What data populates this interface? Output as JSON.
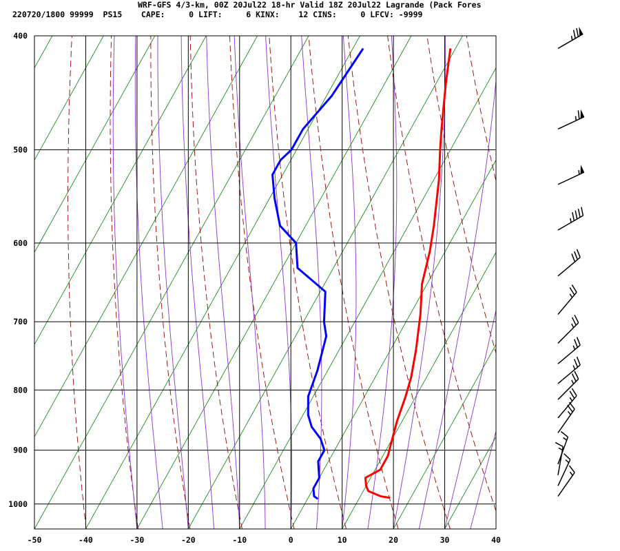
{
  "header": {
    "title": "WRF-GFS 4/3-km, 00Z 20Jul22 18-hr Valid 18Z 20Jul22 Lagrande (Pack Fores",
    "info": "220720/1800 99999  PS15    CAPE:     0 LIFT:     6 KINX:    12 CINS:     0 LFCV: -9999"
  },
  "colors": {
    "temperature": "#ff0000",
    "dewpoint": "#0000ff",
    "dry_adiabat": "#990000",
    "isotherm_skew": "#008000",
    "moist_adiabat": "#8833cc",
    "grid": "#000000",
    "wind": "#000000"
  },
  "chart_data": {
    "type": "line",
    "diagram": "skew-T log-P sounding",
    "xlabel": "",
    "ylabel": "",
    "x_ticks": [
      "-50",
      "-40",
      "-30",
      "-20",
      "-10",
      "0",
      "10",
      "20",
      "30",
      "40"
    ],
    "y_ticks": [
      "400",
      "500",
      "600",
      "700",
      "800",
      "900",
      "1000"
    ],
    "xlim": [
      -50,
      40
    ],
    "ylim_hpa": [
      1050,
      400
    ],
    "y_scale": "log pressure",
    "grid": true,
    "series": [
      {
        "key": "temperature",
        "points_t_p": [
          [
            -21,
            410
          ],
          [
            -18,
            440
          ],
          [
            -14,
            480
          ],
          [
            -12,
            500
          ],
          [
            -9,
            530
          ],
          [
            -5,
            580
          ],
          [
            -3,
            610
          ],
          [
            -1,
            650
          ],
          [
            2,
            690
          ],
          [
            5,
            740
          ],
          [
            7,
            780
          ],
          [
            8,
            810
          ],
          [
            9,
            850
          ],
          [
            10,
            880
          ],
          [
            11,
            910
          ],
          [
            11,
            935
          ],
          [
            9,
            950
          ],
          [
            10,
            965
          ],
          [
            11,
            975
          ],
          [
            14,
            985
          ],
          [
            16,
            988
          ]
        ]
      },
      {
        "key": "dewpoint",
        "points_t_p": [
          [
            -38,
            410
          ],
          [
            -39,
            450
          ],
          [
            -41,
            480
          ],
          [
            -41,
            500
          ],
          [
            -42,
            510
          ],
          [
            -42,
            525
          ],
          [
            -39,
            550
          ],
          [
            -35,
            580
          ],
          [
            -30,
            600
          ],
          [
            -27,
            630
          ],
          [
            -19,
            660
          ],
          [
            -16,
            700
          ],
          [
            -14,
            720
          ],
          [
            -12,
            770
          ],
          [
            -11,
            810
          ],
          [
            -9,
            840
          ],
          [
            -7,
            860
          ],
          [
            -4,
            880
          ],
          [
            -2,
            900
          ],
          [
            -2,
            920
          ],
          [
            -1,
            935
          ],
          [
            0,
            950
          ],
          [
            0,
            970
          ],
          [
            1,
            985
          ],
          [
            2,
            990
          ]
        ]
      }
    ],
    "wind_barbs": [
      {
        "p": 410,
        "dir": 240,
        "speed_kt": 75
      },
      {
        "p": 480,
        "dir": 245,
        "speed_kt": 65
      },
      {
        "p": 535,
        "dir": 245,
        "speed_kt": 55
      },
      {
        "p": 585,
        "dir": 240,
        "speed_kt": 45
      },
      {
        "p": 640,
        "dir": 230,
        "speed_kt": 30
      },
      {
        "p": 690,
        "dir": 220,
        "speed_kt": 25
      },
      {
        "p": 730,
        "dir": 225,
        "speed_kt": 25
      },
      {
        "p": 760,
        "dir": 230,
        "speed_kt": 25
      },
      {
        "p": 790,
        "dir": 230,
        "speed_kt": 25
      },
      {
        "p": 815,
        "dir": 225,
        "speed_kt": 25
      },
      {
        "p": 845,
        "dir": 220,
        "speed_kt": 25
      },
      {
        "p": 870,
        "dir": 215,
        "speed_kt": 25
      },
      {
        "p": 925,
        "dir": 200,
        "speed_kt": 15
      },
      {
        "p": 945,
        "dir": 190,
        "speed_kt": 15
      },
      {
        "p": 965,
        "dir": 205,
        "speed_kt": 15
      },
      {
        "p": 985,
        "dir": 215,
        "speed_kt": 15
      }
    ]
  }
}
